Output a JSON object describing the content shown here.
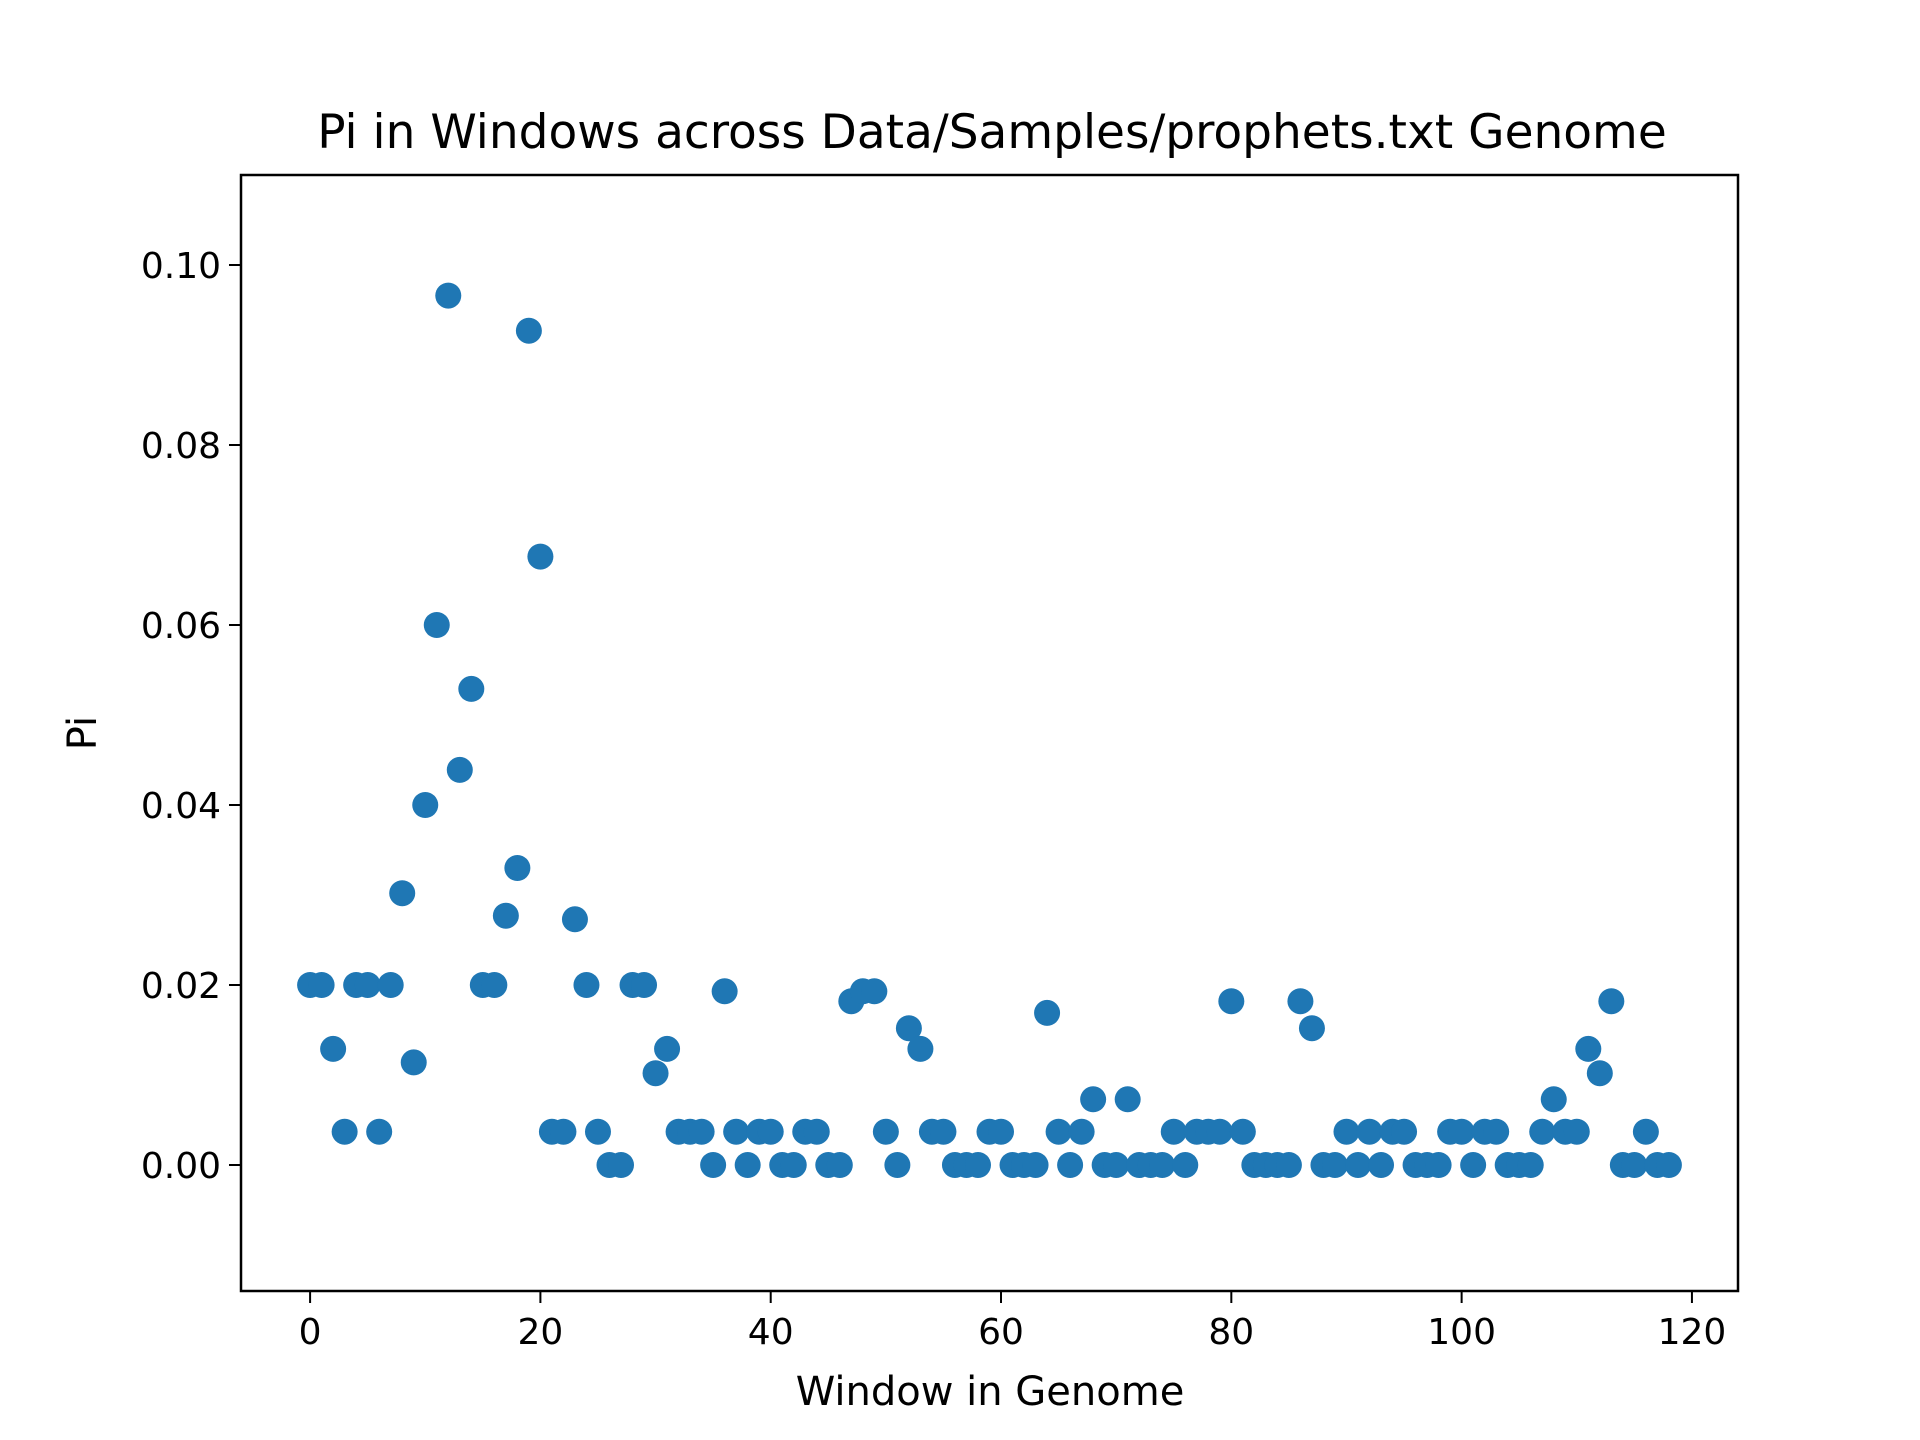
{
  "chart_data": {
    "type": "scatter",
    "title": "Pi in Windows across Data/Samples/prophets.txt Genome",
    "xlabel": "Window in Genome",
    "ylabel": "Pi",
    "xlim": [
      -6,
      124
    ],
    "ylim": [
      -0.014,
      0.11
    ],
    "xticks": [
      0,
      20,
      40,
      60,
      80,
      100,
      120
    ],
    "yticks": [
      0.0,
      0.02,
      0.04,
      0.06,
      0.08,
      0.1
    ],
    "xtick_labels": [
      "0",
      "20",
      "40",
      "60",
      "80",
      "100",
      "120"
    ],
    "ytick_labels": [
      "0.00",
      "0.02",
      "0.04",
      "0.06",
      "0.08",
      "0.10"
    ],
    "grid": false,
    "marker_color": "#1f77b4",
    "x": [
      0,
      1,
      2,
      3,
      4,
      5,
      6,
      7,
      8,
      9,
      10,
      11,
      12,
      13,
      14,
      15,
      16,
      17,
      18,
      19,
      20,
      21,
      22,
      23,
      24,
      25,
      26,
      27,
      28,
      29,
      30,
      31,
      32,
      33,
      34,
      35,
      36,
      37,
      38,
      39,
      40,
      41,
      42,
      43,
      44,
      45,
      46,
      47,
      48,
      49,
      50,
      51,
      52,
      53,
      54,
      55,
      56,
      57,
      58,
      59,
      60,
      61,
      62,
      63,
      64,
      65,
      66,
      67,
      68,
      69,
      70,
      71,
      72,
      73,
      74,
      75,
      76,
      77,
      78,
      79,
      80,
      81,
      82,
      83,
      84,
      85,
      86,
      87,
      88,
      89,
      90,
      91,
      92,
      93,
      94,
      95,
      96,
      97,
      98,
      99,
      100,
      101,
      102,
      103,
      104,
      105,
      106,
      107,
      108,
      109,
      110,
      111,
      112,
      113,
      114,
      115,
      116,
      117,
      118
    ],
    "y": [
      0.02,
      0.02,
      0.0129,
      0.0037,
      0.02,
      0.02,
      0.0037,
      0.02,
      0.0302,
      0.0114,
      0.04,
      0.06,
      0.0966,
      0.0439,
      0.0529,
      0.02,
      0.02,
      0.0277,
      0.033,
      0.0927,
      0.0676,
      0.0037,
      0.0037,
      0.0273,
      0.02,
      0.0037,
      0,
      0,
      0.02,
      0.02,
      0.0102,
      0.0129,
      0.0037,
      0.0037,
      0.0037,
      0,
      0.0193,
      0.0037,
      0,
      0.0037,
      0.0037,
      0,
      0,
      0.0037,
      0.0037,
      0,
      0,
      0.0182,
      0.0193,
      0.0193,
      0.0037,
      0,
      0.0152,
      0.0129,
      0.0037,
      0.0037,
      0,
      0,
      0,
      0.0037,
      0.0037,
      0,
      0,
      0,
      0.0169,
      0.0037,
      0,
      0.0037,
      0.0073,
      0,
      0,
      0.0073,
      0,
      0,
      0,
      0.0037,
      0,
      0.0037,
      0.0037,
      0.0037,
      0.0182,
      0.0037,
      0,
      0,
      0,
      0,
      0.0182,
      0.0152,
      0,
      0,
      0.0037,
      0,
      0.0037,
      0,
      0.0037,
      0.0037,
      0,
      0,
      0,
      0.0037,
      0.0037,
      0,
      0.0037,
      0.0037,
      0,
      0,
      0,
      0.0037,
      0.0073,
      0.0037,
      0.0037,
      0.0129,
      0.0102,
      0.0182,
      0,
      0,
      0.0037,
      0,
      0
    ]
  }
}
